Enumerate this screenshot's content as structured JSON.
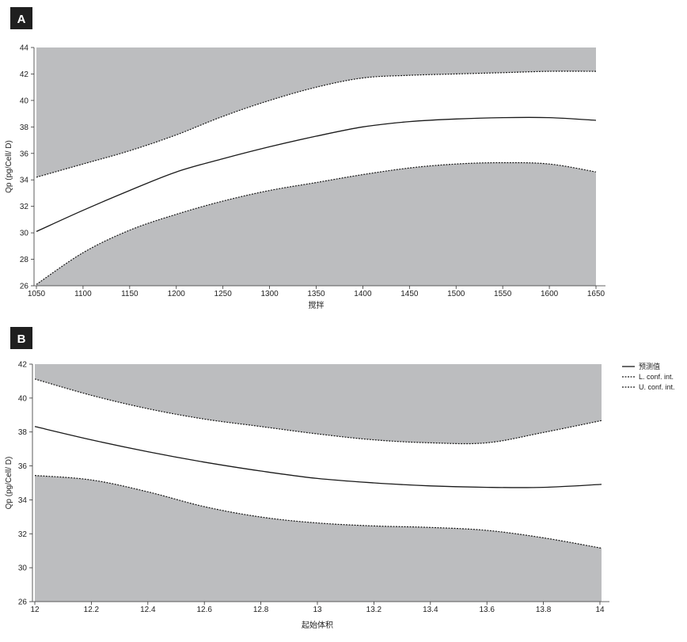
{
  "chart_data": [
    {
      "panel": "A",
      "type": "line",
      "title": "",
      "xlabel": "搅拌",
      "ylabel": "Qp (pg/Cell/ D)",
      "xlim": [
        1050,
        1650
      ],
      "ylim": [
        26,
        44
      ],
      "x_ticks": [
        "1050",
        "1100",
        "1150",
        "1200",
        "1250",
        "1300",
        "1350",
        "1400",
        "1450",
        "1500",
        "1550",
        "1600",
        "1650"
      ],
      "y_ticks": [
        "26",
        "28",
        "30",
        "32",
        "34",
        "36",
        "38",
        "40",
        "42",
        "44"
      ],
      "x": [
        1050,
        1100,
        1150,
        1200,
        1250,
        1300,
        1350,
        1400,
        1450,
        1500,
        1550,
        1600,
        1650
      ],
      "series": [
        {
          "name": "",
          "values": [
            30.1,
            31.7,
            33.2,
            34.6,
            35.6,
            36.5,
            37.3,
            38.0,
            38.4,
            38.6,
            38.7,
            38.7,
            38.5
          ]
        },
        {
          "name": "",
          "values": [
            26.1,
            28.5,
            30.2,
            31.4,
            32.4,
            33.2,
            33.8,
            34.4,
            34.9,
            35.2,
            35.3,
            35.2,
            34.6
          ]
        },
        {
          "name": "",
          "values": [
            34.2,
            35.2,
            36.2,
            37.4,
            38.8,
            40.0,
            41.0,
            41.7,
            41.9,
            42.0,
            42.1,
            42.2,
            42.2
          ]
        }
      ],
      "grid": false
    },
    {
      "panel": "B",
      "type": "line",
      "title": "",
      "xlabel": "起始体积",
      "ylabel": "Qp (pg/Cell/ D)",
      "xlim": [
        12,
        14
      ],
      "ylim": [
        26,
        42
      ],
      "x_ticks": [
        "12",
        "12.2",
        "12.4",
        "12.6",
        "12.8",
        "13",
        "13.2",
        "13.4",
        "13.6",
        "13.8",
        "14"
      ],
      "y_ticks": [
        "26",
        "30",
        "32",
        "34",
        "36",
        "38",
        "40",
        "42"
      ],
      "x": [
        12,
        12.2,
        12.4,
        12.6,
        12.8,
        13,
        13.2,
        13.4,
        13.6,
        13.8,
        14.02
      ],
      "series": [
        {
          "name": "预测值",
          "values": [
            37.8,
            36.9,
            36.1,
            35.4,
            34.8,
            34.3,
            34.0,
            33.8,
            33.7,
            33.7,
            33.9
          ]
        },
        {
          "name": "L. conf. int.",
          "values": [
            34.5,
            34.2,
            33.4,
            32.4,
            31.7,
            31.3,
            31.1,
            31.0,
            30.8,
            30.3,
            29.6
          ]
        },
        {
          "name": "U. conf. int.",
          "values": [
            41.0,
            39.9,
            39.0,
            38.3,
            37.8,
            37.3,
            36.9,
            36.7,
            36.7,
            37.4,
            38.2
          ]
        }
      ],
      "legend": "right-top",
      "grid": false
    }
  ],
  "colors": {
    "shade": "#bcbdbf",
    "line": "#1a1a1a",
    "badge": "#1f1f1f"
  }
}
